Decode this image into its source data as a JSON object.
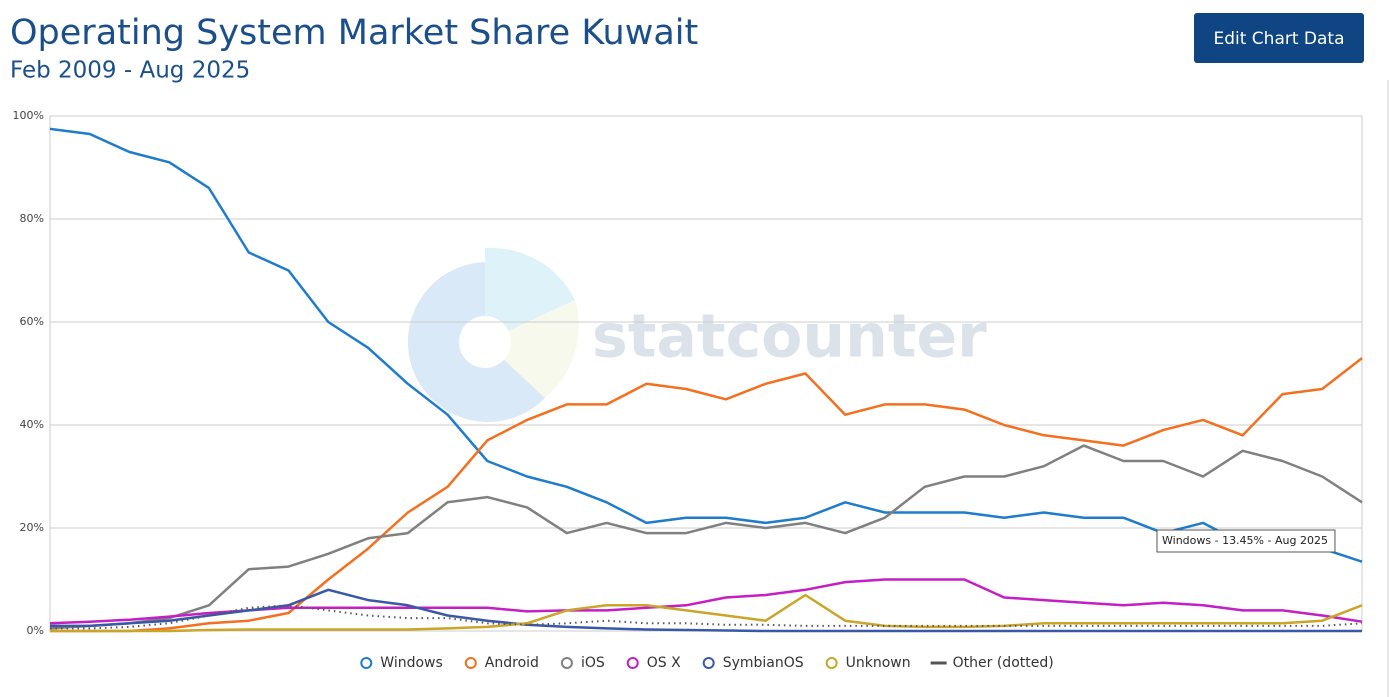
{
  "chart_data": {
    "type": "line",
    "title": "Operating System Market Share Kuwait",
    "subtitle": "Feb 2009 - Aug 2025",
    "button": "Edit Chart Data",
    "watermark": "statcounter",
    "tooltip": "Windows - 13.45% - Aug 2025",
    "categories": [
      null,
      null,
      null,
      null,
      null,
      null,
      null,
      null,
      null,
      null,
      null,
      null,
      null,
      null,
      null,
      null,
      null,
      null,
      null,
      null,
      null,
      null,
      null,
      null,
      null,
      null,
      null,
      null,
      null,
      null,
      null,
      null,
      null,
      null
    ],
    "ylim": [
      0,
      100
    ],
    "yticks": [
      {
        "value": 0,
        "label": "0%"
      },
      {
        "value": 20,
        "label": "20%"
      },
      {
        "value": 40,
        "label": "40%"
      },
      {
        "value": 60,
        "label": "60%"
      },
      {
        "value": 80,
        "label": "80%"
      },
      {
        "value": 100,
        "label": "100%"
      }
    ],
    "grid": true,
    "legend": "bottom",
    "series": [
      {
        "name": "Windows",
        "color": "#1f7ccc",
        "values": [
          97.5,
          96.5,
          93,
          91,
          86,
          73.5,
          70,
          60,
          55,
          48,
          42,
          33,
          30,
          28,
          25,
          21,
          22,
          22,
          21,
          22,
          25,
          23,
          23,
          23,
          22,
          23,
          22,
          22,
          19,
          21,
          17,
          16,
          16,
          13.45
        ]
      },
      {
        "name": "Android",
        "color": "#f2701f",
        "values": [
          0,
          0,
          0,
          0.5,
          1.5,
          2,
          3.5,
          10,
          16,
          23,
          28,
          37,
          41,
          44,
          44,
          48,
          47,
          45,
          48,
          50,
          42,
          44,
          44,
          43,
          40,
          38,
          37,
          36,
          39,
          41,
          38,
          46,
          47,
          53
        ]
      },
      {
        "name": "iOS",
        "color": "#808080",
        "values": [
          0.5,
          1,
          1.5,
          2.5,
          5,
          12,
          12.5,
          15,
          18,
          19,
          25,
          26,
          24,
          19,
          21,
          19,
          19,
          21,
          20,
          21,
          19,
          22,
          28,
          30,
          30,
          32,
          36,
          33,
          33,
          30,
          35,
          33,
          30,
          25
        ]
      },
      {
        "name": "OS X",
        "color": "#c41fc4",
        "values": [
          1.5,
          1.8,
          2.2,
          2.8,
          3.5,
          4,
          4.5,
          4.5,
          4.5,
          4.5,
          4.5,
          4.5,
          3.8,
          4,
          4,
          4.5,
          5,
          6.5,
          7,
          8,
          9.5,
          10,
          10,
          10,
          6.5,
          6,
          5.5,
          5,
          5.5,
          5,
          4,
          4,
          3,
          1.8
        ]
      },
      {
        "name": "SymbianOS",
        "color": "#3a58a8",
        "values": [
          1,
          1,
          1.5,
          2,
          3,
          4,
          5,
          8,
          6,
          5,
          3,
          2,
          1.2,
          0.8,
          0.5,
          0.3,
          0.2,
          0.1,
          0,
          0,
          0,
          0,
          0,
          0,
          0,
          0,
          0,
          0,
          0,
          0,
          0,
          0,
          0,
          0
        ]
      },
      {
        "name": "Unknown",
        "color": "#c9a52a",
        "values": [
          0,
          0,
          0,
          0,
          0.2,
          0.3,
          0.3,
          0.3,
          0.3,
          0.3,
          0.5,
          0.8,
          1.5,
          4,
          5,
          5,
          4,
          3,
          2,
          7,
          2,
          1,
          0.8,
          0.8,
          1,
          1.5,
          1.5,
          1.5,
          1.5,
          1.5,
          1.5,
          1.5,
          2,
          5
        ]
      },
      {
        "name": "Other (dotted)",
        "color": "#555555",
        "dotted": true,
        "values": [
          0.5,
          0.5,
          0.8,
          1.5,
          3,
          4.5,
          5,
          4,
          3,
          2.5,
          2.5,
          1.5,
          1.2,
          1.5,
          2,
          1.5,
          1.5,
          1.2,
          1.2,
          1,
          1,
          1,
          1,
          1,
          1,
          1,
          1,
          1,
          1,
          1,
          1,
          1,
          1,
          1.5
        ]
      }
    ]
  }
}
